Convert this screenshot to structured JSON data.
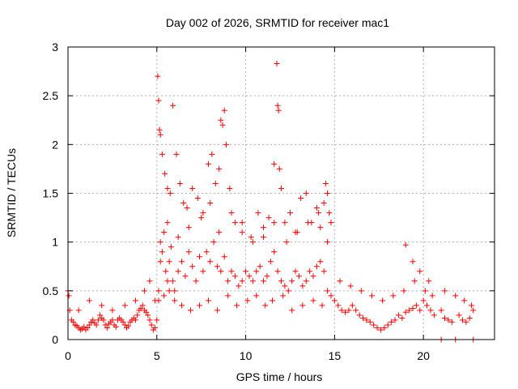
{
  "chart_data": {
    "type": "scatter",
    "title": "Day 002 of 2026, SRMTID for receiver mac1",
    "xlabel": "GPS time / hours",
    "ylabel": "SRMTID / TECUs",
    "xlim": [
      0,
      24
    ],
    "ylim": [
      0,
      3
    ],
    "xticks": [
      0,
      5,
      10,
      15,
      20
    ],
    "xtick_labels": [
      "0",
      "5",
      "10",
      "15",
      "20"
    ],
    "yticks": [
      0,
      0.5,
      1,
      1.5,
      2,
      2.5,
      3
    ],
    "ytick_labels": [
      "0",
      "0.5",
      "1",
      "1.5",
      "2",
      "2.5",
      "3"
    ],
    "grid": true,
    "marker": "plus",
    "color": "#ff0000",
    "series": [
      {
        "name": "mac1",
        "x": [
          0.0,
          0.1,
          0.2,
          0.3,
          0.4,
          0.5,
          0.6,
          0.7,
          0.8,
          0.9,
          1.0,
          1.1,
          1.2,
          1.3,
          1.4,
          1.5,
          1.6,
          1.7,
          1.8,
          1.9,
          2.0,
          2.1,
          2.2,
          2.3,
          2.4,
          2.5,
          2.6,
          2.7,
          2.8,
          2.9,
          3.0,
          3.1,
          3.2,
          3.3,
          3.4,
          3.5,
          3.6,
          3.7,
          3.8,
          3.9,
          4.0,
          4.1,
          4.2,
          4.3,
          4.4,
          4.5,
          4.6,
          4.7,
          4.8,
          4.9,
          5.0,
          5.1,
          5.2,
          5.3,
          5.4,
          5.5,
          5.6,
          5.7,
          5.8,
          5.9,
          6.0,
          6.2,
          6.4,
          6.6,
          6.8,
          7.0,
          7.2,
          7.4,
          7.6,
          7.8,
          8.0,
          8.2,
          8.4,
          8.6,
          8.8,
          9.0,
          9.2,
          9.4,
          9.6,
          9.8,
          10.0,
          10.2,
          10.4,
          10.6,
          10.8,
          11.0,
          11.2,
          11.4,
          11.6,
          11.8,
          12.0,
          12.2,
          12.4,
          12.6,
          12.8,
          13.0,
          13.2,
          13.4,
          13.6,
          13.8,
          14.0,
          14.2,
          14.4,
          14.6,
          14.8,
          15.0,
          15.2,
          15.4,
          15.6,
          15.8,
          16.0,
          16.2,
          16.4,
          16.6,
          16.8,
          17.0,
          17.2,
          17.4,
          17.6,
          17.8,
          18.0,
          18.2,
          18.4,
          18.6,
          18.8,
          19.0,
          19.2,
          19.4,
          19.6,
          19.8,
          20.0,
          20.2,
          20.4,
          20.6,
          21.0,
          21.2,
          21.4,
          21.6,
          22.0,
          22.2,
          22.4,
          22.6,
          22.8,
          5.05,
          5.1,
          5.15,
          5.2,
          5.3,
          5.45,
          5.6,
          5.75,
          5.9,
          6.1,
          6.3,
          6.5,
          6.7,
          7.0,
          7.3,
          7.6,
          7.9,
          8.1,
          8.3,
          8.5,
          8.6,
          8.7,
          8.8,
          8.9,
          9.1,
          9.4,
          9.8,
          10.3,
          10.7,
          11.0,
          11.3,
          11.6,
          11.75,
          11.8,
          11.85,
          11.9,
          12.0,
          12.2,
          12.5,
          12.8,
          13.1,
          13.4,
          13.7,
          14.0,
          14.2,
          14.4,
          14.5,
          14.6,
          14.7,
          14.8,
          5.1,
          5.4,
          5.7,
          6.0,
          6.4,
          6.9,
          7.4,
          7.9,
          8.4,
          9.0,
          9.5,
          10.1,
          10.6,
          11.1,
          11.5,
          12.1,
          12.6,
          13.2,
          13.8,
          14.3,
          0.05,
          0.6,
          1.2,
          1.9,
          2.5,
          3.2,
          3.8,
          4.3,
          4.6,
          4.9,
          15.3,
          15.9,
          16.5,
          17.1,
          17.7,
          18.3,
          18.9,
          19.5,
          20.1,
          20.5,
          21.2,
          21.8,
          22.3,
          22.7,
          5.2,
          5.6,
          6.2,
          6.8,
          7.5,
          8.0,
          8.5,
          9.2,
          9.8,
          10.4,
          11.0,
          11.6,
          12.3,
          12.9,
          13.5,
          14.1,
          14.6,
          19.0,
          19.4,
          19.8,
          20.3,
          21.0,
          21.8,
          22.8
        ],
        "y": [
          0.5,
          0.3,
          0.2,
          0.18,
          0.15,
          0.14,
          0.12,
          0.1,
          0.11,
          0.13,
          0.1,
          0.12,
          0.15,
          0.18,
          0.2,
          0.17,
          0.15,
          0.2,
          0.25,
          0.22,
          0.2,
          0.15,
          0.12,
          0.16,
          0.18,
          0.2,
          0.15,
          0.13,
          0.2,
          0.22,
          0.2,
          0.18,
          0.15,
          0.12,
          0.14,
          0.18,
          0.2,
          0.22,
          0.2,
          0.25,
          0.3,
          0.32,
          0.35,
          0.3,
          0.28,
          0.25,
          0.2,
          0.15,
          0.1,
          0.12,
          0.2,
          0.5,
          0.8,
          0.9,
          1.1,
          0.7,
          0.6,
          0.8,
          0.95,
          0.6,
          0.5,
          0.7,
          0.8,
          0.65,
          0.9,
          0.75,
          0.6,
          0.85,
          0.7,
          0.9,
          0.8,
          1.0,
          0.75,
          0.7,
          0.85,
          0.6,
          0.7,
          0.65,
          0.55,
          0.6,
          0.7,
          0.65,
          0.6,
          0.7,
          0.75,
          0.6,
          0.65,
          0.8,
          0.9,
          0.7,
          0.6,
          0.55,
          0.5,
          0.6,
          0.7,
          0.65,
          0.55,
          0.6,
          0.7,
          0.65,
          0.75,
          0.8,
          0.7,
          0.5,
          0.45,
          0.4,
          0.35,
          0.3,
          0.28,
          0.3,
          0.35,
          0.3,
          0.25,
          0.22,
          0.2,
          0.18,
          0.15,
          0.12,
          0.1,
          0.12,
          0.15,
          0.18,
          0.2,
          0.25,
          0.22,
          0.28,
          0.3,
          0.32,
          0.35,
          0.3,
          0.4,
          0.35,
          0.3,
          0.25,
          0.3,
          0.22,
          0.2,
          0.18,
          0.25,
          0.2,
          0.18,
          0.22,
          0.3,
          2.7,
          2.45,
          2.15,
          2.1,
          1.9,
          1.7,
          1.55,
          1.5,
          2.4,
          1.9,
          1.6,
          1.4,
          1.35,
          1.55,
          1.45,
          1.3,
          1.8,
          1.9,
          1.6,
          1.75,
          2.25,
          2.2,
          2.35,
          2.0,
          1.55,
          1.2,
          1.1,
          1.05,
          1.3,
          1.15,
          1.25,
          1.8,
          2.83,
          2.4,
          2.35,
          1.75,
          1.55,
          1.2,
          1.3,
          1.1,
          1.45,
          1.5,
          1.2,
          1.35,
          1.15,
          1.4,
          1.6,
          1.5,
          1.3,
          1.2,
          0.4,
          0.45,
          0.5,
          0.4,
          0.35,
          0.3,
          0.35,
          0.4,
          0.3,
          0.45,
          0.35,
          0.4,
          0.45,
          0.35,
          0.4,
          0.45,
          0.3,
          0.35,
          0.4,
          0.35,
          0.45,
          0.3,
          0.4,
          0.35,
          0.3,
          0.35,
          0.4,
          0.5,
          0.6,
          0.4,
          0.6,
          0.55,
          0.5,
          0.45,
          0.4,
          0.45,
          0.5,
          0.6,
          0.5,
          0.45,
          0.5,
          0.45,
          0.4,
          0.35,
          1.0,
          1.2,
          1.05,
          1.15,
          1.25,
          1.4,
          1.1,
          1.3,
          1.2,
          1.0,
          1.05,
          1.2,
          1.0,
          1.1,
          1.2,
          1.3,
          1.0,
          0.97,
          0.8,
          0.7,
          0.6,
          0.0,
          0.0,
          0.0
        ]
      }
    ]
  }
}
